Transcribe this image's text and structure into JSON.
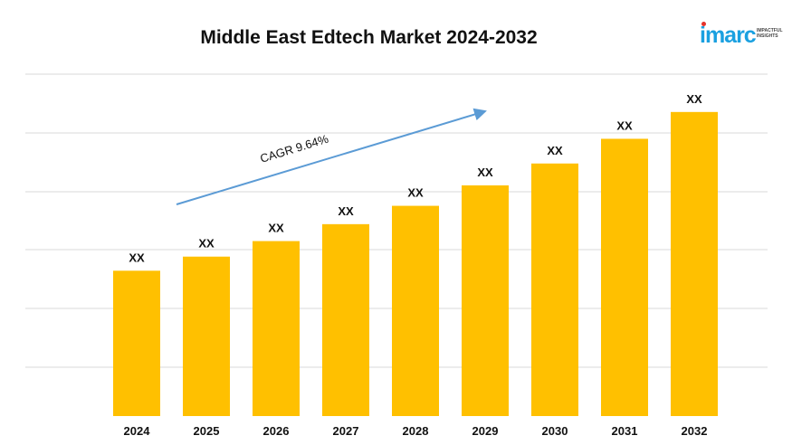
{
  "chart_data": {
    "type": "bar",
    "title": "Middle East Edtech Market 2024-2032",
    "categories": [
      "2024",
      "2025",
      "2026",
      "2027",
      "2028",
      "2029",
      "2030",
      "2031",
      "2032"
    ],
    "values": [
      2.06,
      2.26,
      2.48,
      2.72,
      2.98,
      3.27,
      3.58,
      3.93,
      4.31
    ],
    "data_labels": [
      "XX",
      "XX",
      "XX",
      "XX",
      "XX",
      "XX",
      "XX",
      "XX",
      "XX"
    ],
    "ylim": [
      0,
      5.0
    ],
    "grid": true,
    "annotation": "CAGR 9.64%",
    "bar_color": "#ffc000",
    "grid_color": "#d9d9d9",
    "arrow_color": "#5b9bd5"
  },
  "logo": {
    "word": "imarc",
    "tagline_1": "IMPACTFUL",
    "tagline_2": "INSIGHTS",
    "color": "#1aa0e0"
  }
}
